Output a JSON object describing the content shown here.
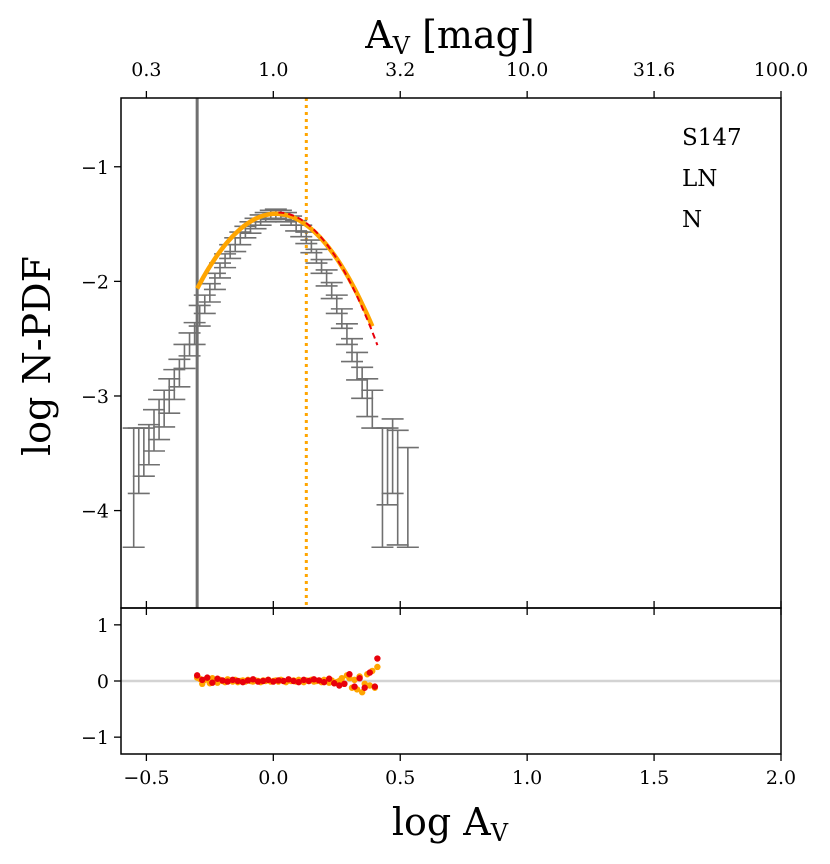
{
  "chart_data": {
    "type": "scatter",
    "top_axis": {
      "label": "A",
      "label_sub": "V",
      "label_unit": " [mag]",
      "tick_labels": [
        "0.3",
        "1.0",
        "3.2",
        "10.0",
        "31.6",
        "100.0"
      ],
      "tick_positions_logAv": [
        -0.5,
        0.0,
        0.5,
        1.0,
        1.5,
        2.0
      ]
    },
    "bottom_axis": {
      "label": "log A",
      "label_sub": "V",
      "xlim": [
        -0.6,
        2.0
      ],
      "tick_values": [
        -0.5,
        0.0,
        0.5,
        1.0,
        1.5,
        2.0
      ],
      "tick_labels": [
        "−0.5",
        "0.0",
        "0.5",
        "1.0",
        "1.5",
        "2.0"
      ]
    },
    "main_panel": {
      "ylabel": "log N-PDF",
      "ylim": [
        -4.85,
        -0.4
      ],
      "tick_values": [
        -1,
        -2,
        -3,
        -4
      ],
      "tick_labels": [
        "−1",
        "−2",
        "−3",
        "−4"
      ],
      "annotations": [
        "S147",
        "LN",
        "N"
      ],
      "vertical_lines": [
        {
          "x": -0.3,
          "style": "solid",
          "color": "#707070"
        },
        {
          "x": 0.13,
          "style": "dotted",
          "color": "#ffa500"
        }
      ],
      "errorbar_color": "#707070",
      "points": [
        {
          "x": -0.55,
          "y": -3.7,
          "lo": -4.32,
          "hi": -3.28
        },
        {
          "x": -0.53,
          "y": -3.55,
          "lo": -3.85,
          "hi": -3.28
        },
        {
          "x": -0.51,
          "y": -3.45,
          "lo": -3.7,
          "hi": -3.28
        },
        {
          "x": -0.49,
          "y": -3.4,
          "lo": -3.6,
          "hi": -3.25
        },
        {
          "x": -0.47,
          "y": -3.3,
          "lo": -3.48,
          "hi": -3.12
        },
        {
          "x": -0.45,
          "y": -3.2,
          "lo": -3.38,
          "hi": -3.03
        },
        {
          "x": -0.43,
          "y": -3.1,
          "lo": -3.27,
          "hi": -2.95
        },
        {
          "x": -0.41,
          "y": -3.0,
          "lo": -3.15,
          "hi": -2.85
        },
        {
          "x": -0.39,
          "y": -2.9,
          "lo": -3.03,
          "hi": -2.77
        },
        {
          "x": -0.37,
          "y": -2.8,
          "lo": -2.92,
          "hi": -2.68
        },
        {
          "x": -0.35,
          "y": -2.65,
          "lo": -2.76,
          "hi": -2.55
        },
        {
          "x": -0.33,
          "y": -2.55,
          "lo": -2.65,
          "hi": -2.45
        },
        {
          "x": -0.31,
          "y": -2.45,
          "lo": -2.55,
          "hi": -2.36
        },
        {
          "x": -0.29,
          "y": -2.3,
          "lo": -2.39,
          "hi": -2.21
        },
        {
          "x": -0.27,
          "y": -2.2,
          "lo": -2.28,
          "hi": -2.12
        },
        {
          "x": -0.25,
          "y": -2.1,
          "lo": -2.18,
          "hi": -2.02
        },
        {
          "x": -0.23,
          "y": -2.0,
          "lo": -2.07,
          "hi": -1.93
        },
        {
          "x": -0.21,
          "y": -1.9,
          "lo": -1.97,
          "hi": -1.84
        },
        {
          "x": -0.19,
          "y": -1.82,
          "lo": -1.88,
          "hi": -1.76
        },
        {
          "x": -0.17,
          "y": -1.74,
          "lo": -1.8,
          "hi": -1.68
        },
        {
          "x": -0.15,
          "y": -1.68,
          "lo": -1.74,
          "hi": -1.62
        },
        {
          "x": -0.13,
          "y": -1.62,
          "lo": -1.68,
          "hi": -1.57
        },
        {
          "x": -0.11,
          "y": -1.57,
          "lo": -1.62,
          "hi": -1.52
        },
        {
          "x": -0.09,
          "y": -1.53,
          "lo": -1.58,
          "hi": -1.48
        },
        {
          "x": -0.07,
          "y": -1.49,
          "lo": -1.54,
          "hi": -1.45
        },
        {
          "x": -0.05,
          "y": -1.46,
          "lo": -1.51,
          "hi": -1.42
        },
        {
          "x": -0.03,
          "y": -1.44,
          "lo": -1.48,
          "hi": -1.4
        },
        {
          "x": -0.01,
          "y": -1.42,
          "lo": -1.46,
          "hi": -1.38
        },
        {
          "x": 0.01,
          "y": -1.41,
          "lo": -1.45,
          "hi": -1.37
        },
        {
          "x": 0.03,
          "y": -1.42,
          "lo": -1.46,
          "hi": -1.38
        },
        {
          "x": 0.05,
          "y": -1.44,
          "lo": -1.48,
          "hi": -1.4
        },
        {
          "x": 0.07,
          "y": -1.47,
          "lo": -1.51,
          "hi": -1.43
        },
        {
          "x": 0.09,
          "y": -1.51,
          "lo": -1.56,
          "hi": -1.47
        },
        {
          "x": 0.11,
          "y": -1.56,
          "lo": -1.61,
          "hi": -1.51
        },
        {
          "x": 0.13,
          "y": -1.62,
          "lo": -1.67,
          "hi": -1.57
        },
        {
          "x": 0.15,
          "y": -1.7,
          "lo": -1.75,
          "hi": -1.64
        },
        {
          "x": 0.17,
          "y": -1.78,
          "lo": -1.84,
          "hi": -1.72
        },
        {
          "x": 0.19,
          "y": -1.87,
          "lo": -1.93,
          "hi": -1.81
        },
        {
          "x": 0.21,
          "y": -1.97,
          "lo": -2.04,
          "hi": -1.9
        },
        {
          "x": 0.23,
          "y": -2.08,
          "lo": -2.15,
          "hi": -2.01
        },
        {
          "x": 0.25,
          "y": -2.2,
          "lo": -2.28,
          "hi": -2.12
        },
        {
          "x": 0.27,
          "y": -2.33,
          "lo": -2.41,
          "hi": -2.24
        },
        {
          "x": 0.29,
          "y": -2.46,
          "lo": -2.55,
          "hi": -2.37
        },
        {
          "x": 0.31,
          "y": -2.6,
          "lo": -2.7,
          "hi": -2.5
        },
        {
          "x": 0.33,
          "y": -2.74,
          "lo": -2.86,
          "hi": -2.62
        },
        {
          "x": 0.35,
          "y": -2.88,
          "lo": -3.02,
          "hi": -2.75
        },
        {
          "x": 0.37,
          "y": -3.0,
          "lo": -3.18,
          "hi": -2.85
        },
        {
          "x": 0.39,
          "y": -3.1,
          "lo": -3.28,
          "hi": -2.95
        },
        {
          "x": 0.43,
          "y": -3.7,
          "lo": -4.32,
          "hi": -3.28
        },
        {
          "x": 0.45,
          "y": -3.55,
          "lo": -3.95,
          "hi": -3.28
        },
        {
          "x": 0.47,
          "y": -3.5,
          "lo": -3.85,
          "hi": -3.2
        },
        {
          "x": 0.49,
          "y": -3.6,
          "lo": -4.3,
          "hi": -3.3
        },
        {
          "x": 0.53,
          "y": -3.8,
          "lo": -4.32,
          "hi": -3.45
        }
      ],
      "fits": [
        {
          "name": "LN fit",
          "color": "#ffa500",
          "style": "solid",
          "x_range": [
            -0.3,
            0.39
          ],
          "peak_x": 0.01,
          "peak_y": -1.41,
          "curvature": 6.8
        },
        {
          "name": "N fit",
          "color": "#e8000b",
          "style": "dashed",
          "x_range": [
            0.02,
            0.41
          ],
          "peak_x": 0.02,
          "peak_y": -1.4,
          "curvature": 7.6
        }
      ]
    },
    "residual_panel": {
      "ylim": [
        -1.3,
        1.3
      ],
      "tick_values": [
        1,
        0,
        -1
      ],
      "tick_labels": [
        "1",
        "0",
        "−1"
      ],
      "zero_line_color": "#d3d3d3",
      "series": [
        {
          "name": "LN residuals",
          "color": "#ffa500",
          "x": [
            -0.3,
            -0.29,
            -0.28,
            -0.27,
            -0.26,
            -0.25,
            -0.24,
            -0.23,
            -0.22,
            -0.21,
            -0.2,
            -0.19,
            -0.18,
            -0.17,
            -0.16,
            -0.15,
            -0.14,
            -0.13,
            -0.12,
            -0.11,
            -0.1,
            -0.09,
            -0.08,
            -0.07,
            -0.06,
            -0.05,
            -0.04,
            -0.03,
            -0.02,
            -0.01,
            0.0,
            0.01,
            0.02,
            0.03,
            0.04,
            0.05,
            0.06,
            0.07,
            0.08,
            0.09,
            0.1,
            0.11,
            0.12,
            0.13,
            0.14,
            0.15,
            0.16,
            0.17,
            0.18,
            0.19,
            0.2,
            0.21,
            0.22,
            0.23,
            0.24,
            0.25,
            0.26,
            0.27,
            0.28,
            0.29,
            0.3,
            0.31,
            0.32,
            0.33,
            0.34,
            0.35,
            0.36,
            0.37,
            0.38,
            0.39,
            0.4,
            0.41
          ],
          "y": [
            0.06,
            0.04,
            -0.05,
            0.02,
            0.03,
            -0.04,
            0.05,
            0.01,
            -0.03,
            0.02,
            0.0,
            -0.02,
            0.03,
            0.01,
            -0.01,
            0.02,
            -0.02,
            0.0,
            0.01,
            -0.01,
            0.02,
            0.0,
            -0.01,
            0.01,
            0.0,
            -0.02,
            0.01,
            0.0,
            0.02,
            -0.01,
            0.0,
            0.01,
            -0.01,
            0.02,
            0.0,
            -0.02,
            0.01,
            0.0,
            0.01,
            -0.01,
            0.02,
            0.0,
            -0.02,
            0.01,
            0.0,
            0.02,
            -0.01,
            0.0,
            0.01,
            -0.02,
            0.02,
            0.0,
            -0.03,
            0.01,
            -0.04,
            -0.02,
            0.0,
            0.05,
            -0.05,
            0.1,
            0.05,
            -0.12,
            0.02,
            -0.15,
            0.08,
            -0.2,
            -0.05,
            0.12,
            -0.08,
            0.18,
            -0.12,
            0.25
          ]
        },
        {
          "name": "N residuals",
          "color": "#e8000b",
          "x": [
            -0.3,
            -0.28,
            -0.26,
            -0.24,
            -0.22,
            -0.2,
            -0.18,
            -0.16,
            -0.14,
            -0.12,
            -0.1,
            -0.08,
            -0.06,
            -0.04,
            -0.02,
            0.0,
            0.02,
            0.04,
            0.06,
            0.08,
            0.1,
            0.12,
            0.14,
            0.16,
            0.18,
            0.2,
            0.22,
            0.24,
            0.26,
            0.28,
            0.3,
            0.32,
            0.34,
            0.36,
            0.38,
            0.4,
            0.41
          ],
          "y": [
            0.1,
            0.02,
            0.06,
            -0.03,
            0.04,
            0.01,
            -0.01,
            0.02,
            0.0,
            -0.02,
            0.01,
            0.03,
            -0.01,
            0.0,
            0.02,
            -0.01,
            0.01,
            0.0,
            0.03,
            0.0,
            -0.02,
            0.02,
            0.0,
            0.03,
            0.01,
            -0.02,
            0.04,
            -0.04,
            -0.08,
            -0.05,
            0.12,
            -0.1,
            0.05,
            -0.12,
            0.15,
            -0.1,
            0.4
          ]
        }
      ]
    }
  }
}
